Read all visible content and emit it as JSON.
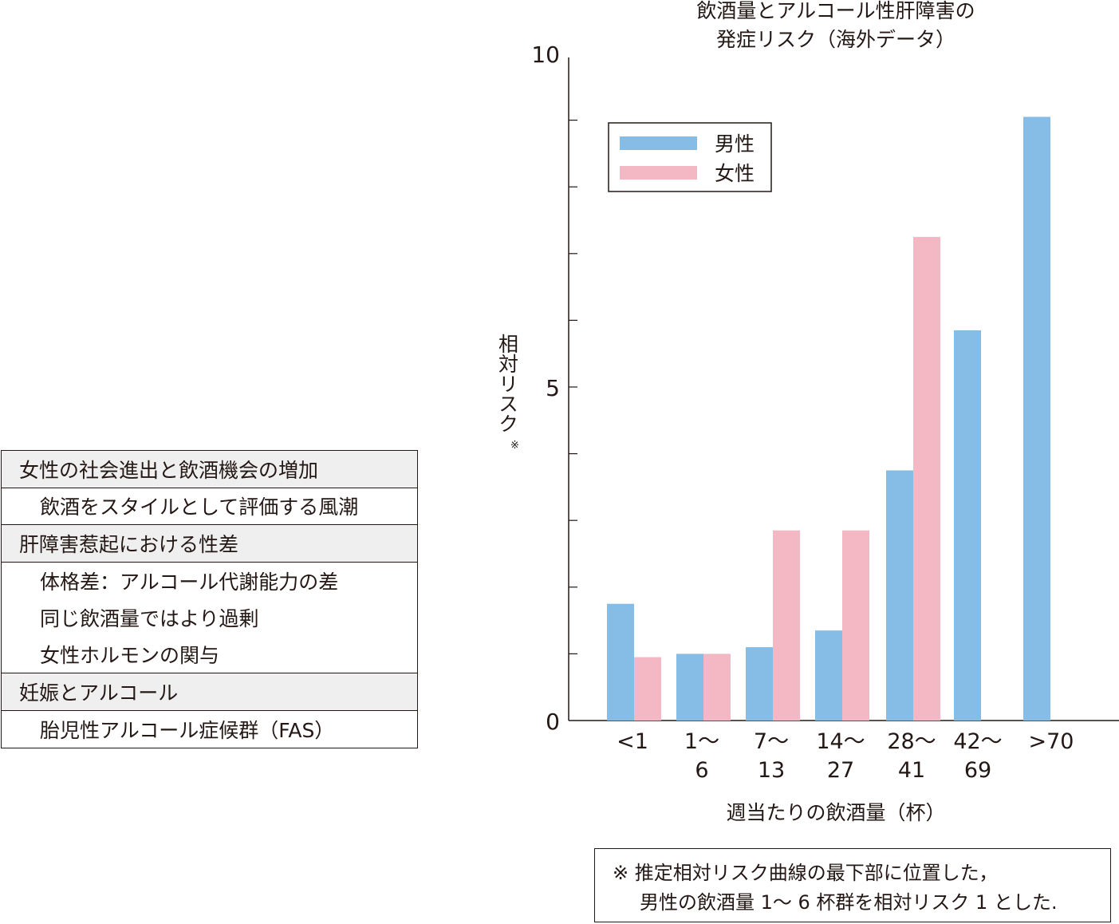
{
  "table": {
    "rows": [
      {
        "text": "女性の社会進出と飲酒機会の増加",
        "type": "header"
      },
      {
        "text": "飲酒をスタイルとして評価する風潮",
        "type": "sub"
      },
      {
        "text": "肝障害惹起における性差",
        "type": "header"
      },
      {
        "text": "体格差：アルコール代謝能力の差",
        "type": "sub"
      },
      {
        "text": "同じ飲酒量ではより過剰",
        "type": "sub"
      },
      {
        "text": "女性ホルモンの関与",
        "type": "sub"
      },
      {
        "text": "妊娠とアルコール",
        "type": "header"
      },
      {
        "text": "胎児性アルコール症候群（FAS）",
        "type": "sub"
      }
    ]
  },
  "chart_data": {
    "type": "bar",
    "title": [
      "飲酒量とアルコール性肝障害の",
      "発症リスク（海外データ）"
    ],
    "xlabel": "週当たりの飲酒量（杯）",
    "ylabel": "相対リスク",
    "ylabel_mark": "※",
    "ylim": [
      0,
      10
    ],
    "yticks": [
      "0",
      "5",
      "10"
    ],
    "categories": [
      [
        "<1",
        ""
      ],
      [
        "1〜",
        "6"
      ],
      [
        "7〜",
        "13"
      ],
      [
        "14〜",
        "27"
      ],
      [
        "28〜",
        "41"
      ],
      [
        "42〜",
        "69"
      ],
      [
        ">70",
        ""
      ]
    ],
    "series": [
      {
        "name": "男性",
        "color": "#86bde6",
        "values": [
          1.75,
          1.0,
          1.1,
          1.35,
          3.75,
          5.85,
          9.05
        ]
      },
      {
        "name": "女性",
        "color": "#f4b8c5",
        "values": [
          0.95,
          1.0,
          2.85,
          2.85,
          7.25,
          null,
          null
        ]
      }
    ],
    "legend": "top-left"
  },
  "note": [
    "※ 推定相対リスク曲線の最下部に位置した，",
    "男性の飲酒量 1〜 6 杯群を相対リスク 1 とした."
  ]
}
